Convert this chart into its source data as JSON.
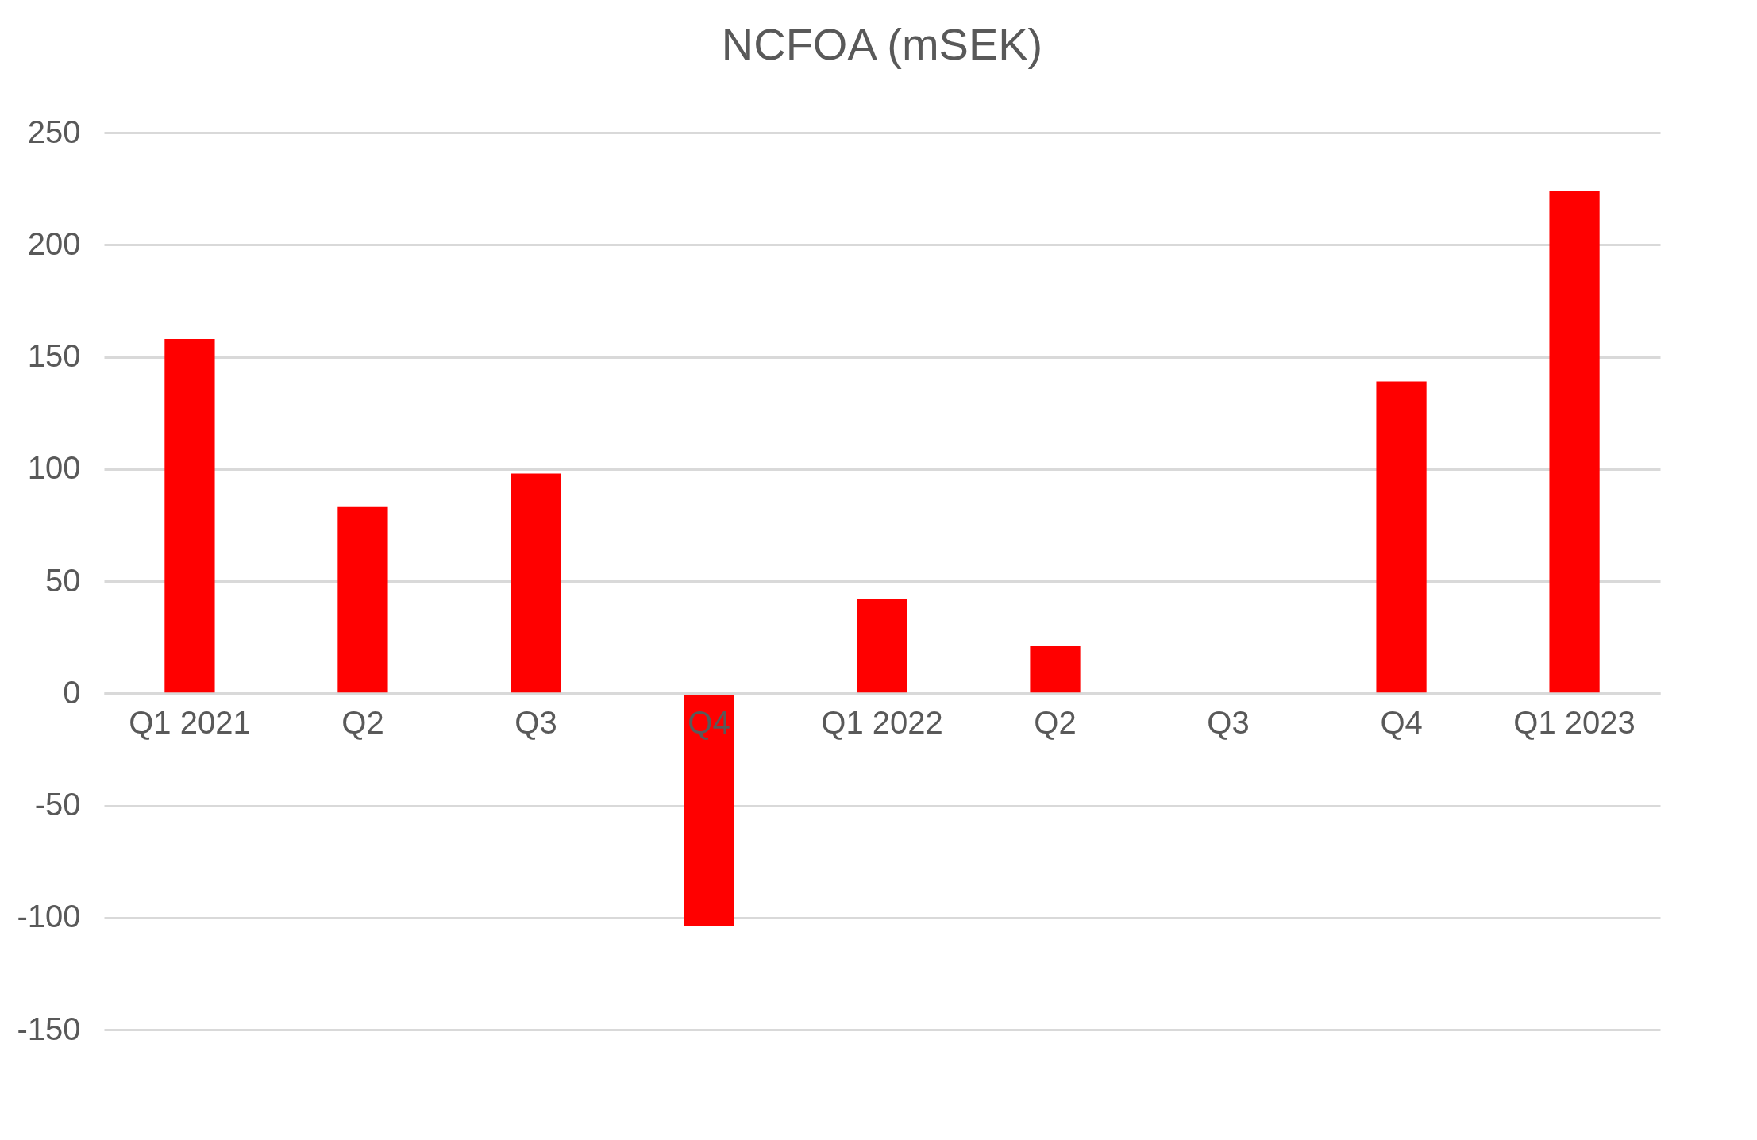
{
  "chart_data": {
    "type": "bar",
    "title": "NCFOA (mSEK)",
    "categories": [
      "Q1 2021",
      "Q2",
      "Q3",
      "Q4",
      "Q1 2022",
      "Q2",
      "Q3",
      "Q4",
      "Q1 2023"
    ],
    "values": [
      158,
      83,
      98,
      -104,
      42,
      21,
      0,
      139,
      224
    ],
    "color": "#ff0000",
    "ylim": [
      -150,
      250
    ],
    "yticks": [
      -150,
      -100,
      -50,
      0,
      50,
      100,
      150,
      200,
      250
    ],
    "grid": "y"
  }
}
